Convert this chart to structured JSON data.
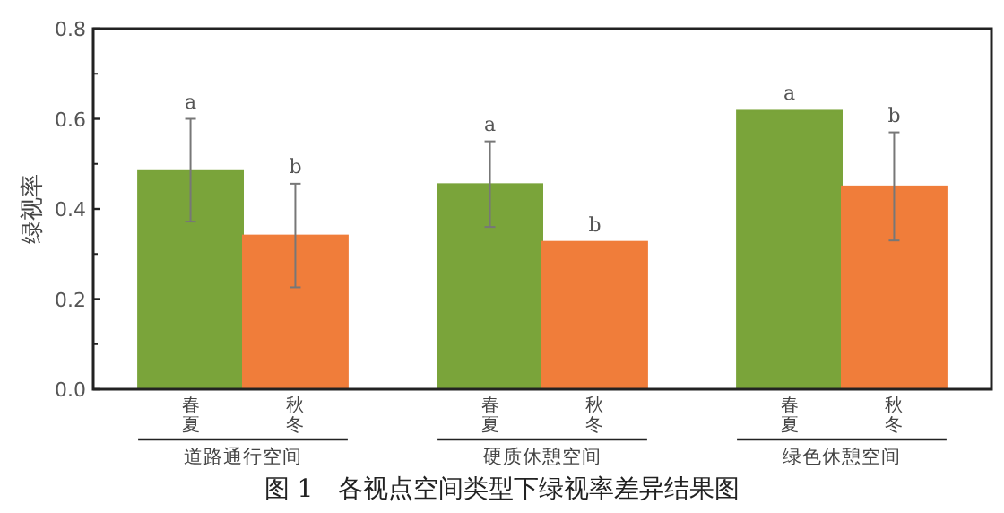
{
  "chart_data": {
    "type": "bar",
    "title": "图 1　各视点空间类型下绿视率差异结果图",
    "ylabel": "绿视率",
    "categories": [
      "道路通行空间",
      "硬质休憩空间",
      "绿色休憩空间"
    ],
    "series": [
      {
        "name": "春夏",
        "color": "#7aa43a",
        "values": [
          0.486,
          0.455,
          0.618
        ],
        "errors": [
          0.114,
          0.095,
          null
        ]
      },
      {
        "name": "秋冬",
        "color": "#f07d3a",
        "values": [
          0.341,
          0.327,
          0.45
        ],
        "errors": [
          0.115,
          null,
          0.12
        ]
      }
    ],
    "ylim": [
      0,
      0.8
    ],
    "yticks": [
      {
        "value": 0,
        "label": "0.0"
      },
      {
        "value": 0.2,
        "label": "0.2"
      },
      {
        "value": 0.4,
        "label": "0.4"
      },
      {
        "value": 0.6,
        "label": "0.6"
      },
      {
        "value": 0.8,
        "label": "0.8"
      }
    ],
    "annotations": [
      "a",
      "b",
      "a",
      "b",
      "a",
      "b"
    ],
    "grid": false
  }
}
